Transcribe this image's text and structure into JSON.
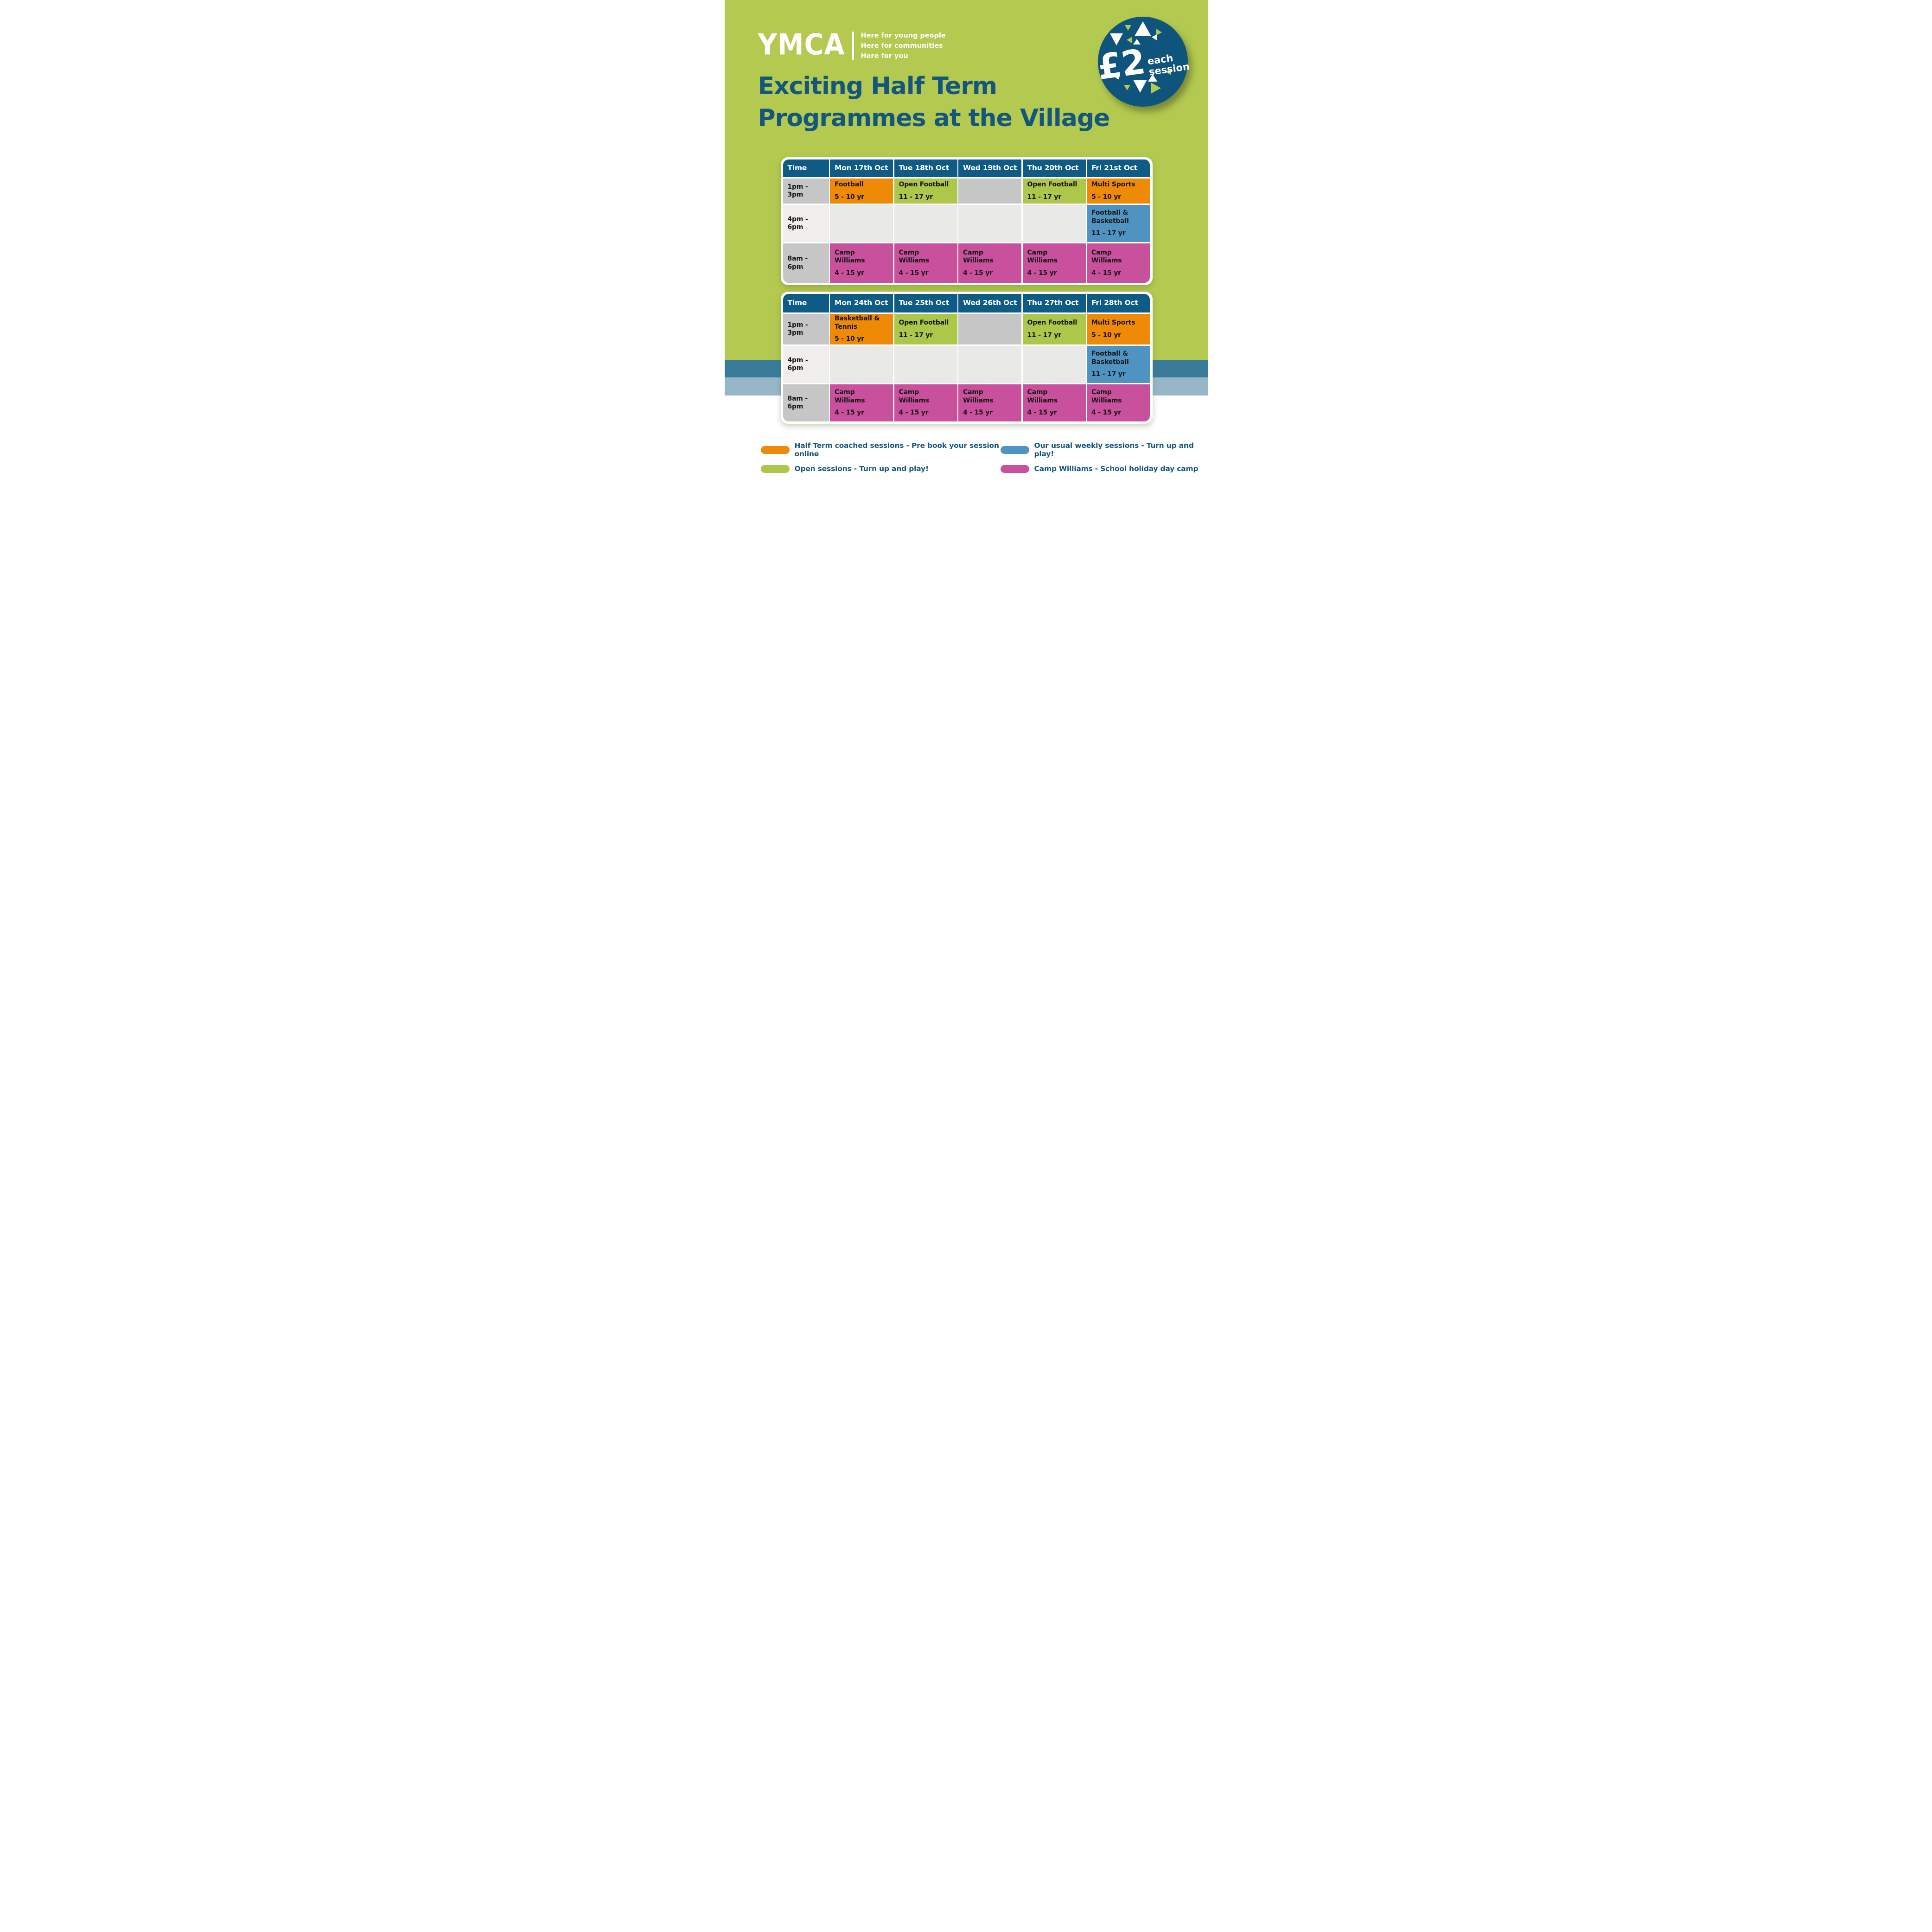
{
  "brand": {
    "logo": "YMCA",
    "taglines": [
      "Here for young people",
      "Here for communities",
      "Here for you"
    ]
  },
  "badge": {
    "price": "£2",
    "label_line1": "each",
    "label_line2": "session"
  },
  "title": [
    "Exciting Half Term",
    "Programmes at the Village"
  ],
  "week1": {
    "columns": [
      "Time",
      "Mon 17th Oct",
      "Tue 18th Oct",
      "Wed 19th Oct",
      "Thu 20th Oct",
      "Fri 21st Oct"
    ],
    "rows": [
      {
        "time": [
          "1pm -",
          "3pm"
        ],
        "time_style": "gray",
        "cells": [
          {
            "style": "coached",
            "lines": [
              "Football"
            ],
            "age": "5 - 10 yr"
          },
          {
            "style": "open",
            "lines": [
              "Open Football"
            ],
            "age": "11 - 17 yr"
          },
          {
            "style": "gray"
          },
          {
            "style": "open",
            "lines": [
              "Open Football"
            ],
            "age": "11 - 17 yr"
          },
          {
            "style": "coached",
            "lines": [
              "Multi Sports"
            ],
            "age": "5 - 10 yr"
          }
        ]
      },
      {
        "time": [
          "4pm -",
          "6pm"
        ],
        "time_style": "light",
        "cells": [
          {
            "style": "light"
          },
          {
            "style": "light"
          },
          {
            "style": "light"
          },
          {
            "style": "light"
          },
          {
            "style": "weekly",
            "lines": [
              "Football &",
              "Basketball"
            ],
            "age": "11 - 17 yr"
          }
        ]
      },
      {
        "time": [
          "8am -",
          "6pm"
        ],
        "time_style": "gray",
        "cells": [
          {
            "style": "camp",
            "lines": [
              "Camp",
              "Williams"
            ],
            "age": "4 - 15 yr"
          },
          {
            "style": "camp",
            "lines": [
              "Camp",
              "Williams"
            ],
            "age": "4 - 15 yr"
          },
          {
            "style": "camp",
            "lines": [
              "Camp",
              "Williams"
            ],
            "age": "4 - 15 yr"
          },
          {
            "style": "camp",
            "lines": [
              "Camp",
              "Williams"
            ],
            "age": "4 - 15 yr"
          },
          {
            "style": "camp",
            "lines": [
              "Camp",
              "Williams"
            ],
            "age": "4 - 15 yr"
          }
        ]
      }
    ]
  },
  "week2": {
    "columns": [
      "Time",
      "Mon 24th Oct",
      "Tue 25th Oct",
      "Wed 26th Oct",
      "Thu 27th Oct",
      "Fri 28th Oct"
    ],
    "rows": [
      {
        "time": [
          "1pm -",
          "3pm"
        ],
        "time_style": "gray",
        "cells": [
          {
            "style": "coached",
            "lines": [
              "Basketball &",
              "Tennis"
            ],
            "age": "5 - 10 yr"
          },
          {
            "style": "open",
            "lines": [
              "Open Football"
            ],
            "age": "11 - 17 yr"
          },
          {
            "style": "gray"
          },
          {
            "style": "open",
            "lines": [
              "Open Football"
            ],
            "age": "11 - 17 yr"
          },
          {
            "style": "coached",
            "lines": [
              "Multi Sports"
            ],
            "age": "5 - 10 yr"
          }
        ]
      },
      {
        "time": [
          "4pm -",
          "6pm"
        ],
        "time_style": "light",
        "cells": [
          {
            "style": "light"
          },
          {
            "style": "light"
          },
          {
            "style": "light"
          },
          {
            "style": "light"
          },
          {
            "style": "weekly",
            "lines": [
              "Football &",
              "Basketball"
            ],
            "age": "11 - 17 yr"
          }
        ]
      },
      {
        "time": [
          "8am -",
          "6pm"
        ],
        "time_style": "gray",
        "cells": [
          {
            "style": "camp",
            "lines": [
              "Camp",
              "Williams"
            ],
            "age": "4 - 15 yr"
          },
          {
            "style": "camp",
            "lines": [
              "Camp",
              "Williams"
            ],
            "age": "4 - 15 yr"
          },
          {
            "style": "camp",
            "lines": [
              "Camp",
              "Williams"
            ],
            "age": "4 - 15 yr"
          },
          {
            "style": "camp",
            "lines": [
              "Camp",
              "Williams"
            ],
            "age": "4 - 15 yr"
          },
          {
            "style": "camp",
            "lines": [
              "Camp",
              "Williams"
            ],
            "age": "4 - 15 yr"
          }
        ]
      }
    ]
  },
  "legend": [
    {
      "swatch": "coached",
      "text": "Half Term coached sessions - Pre book your session online"
    },
    {
      "swatch": "open",
      "text": "Open sessions - Turn up and play!"
    },
    {
      "swatch": "weekly",
      "text": "Our usual weekly sessions - Turn up and play!"
    },
    {
      "swatch": "camp",
      "text": "Camp Williams - School holiday day camp"
    }
  ],
  "colors": {
    "background": "#b4c950",
    "header": "#0e5c86",
    "brand_blue": "#15567d",
    "badge": "#0f547c",
    "coached": "#ee8a05",
    "open": "#adc74b",
    "weekly": "#4f93c3",
    "camp": "#c8509c",
    "gray": "#c6c6c6",
    "light": "#e9e9e7",
    "time_light": "#f0efed",
    "stripe_dark": "#3a7b9b",
    "stripe_light": "#97b7c9"
  }
}
